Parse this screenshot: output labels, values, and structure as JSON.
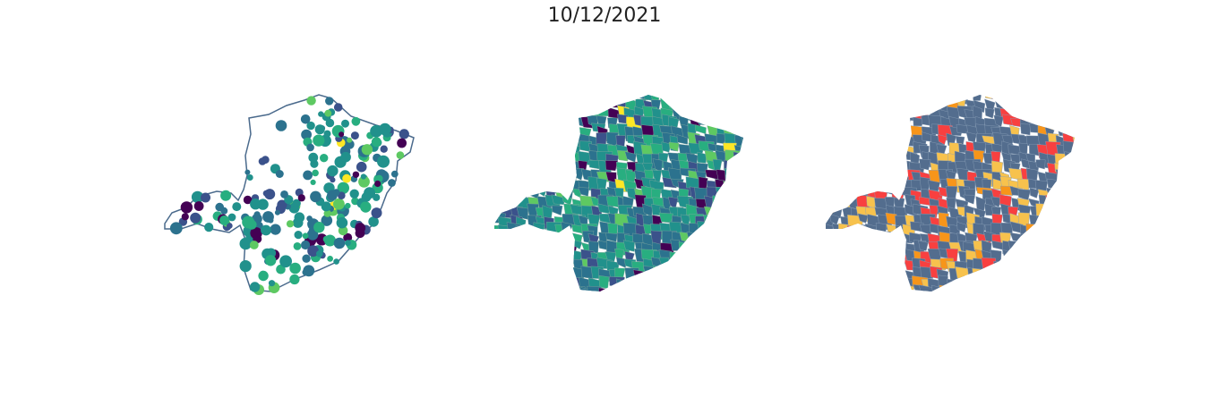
{
  "title": "10/12/2021",
  "colors": {
    "outline": "#4a6a8c",
    "viridis": [
      "#440154",
      "#3b528b",
      "#2c728e",
      "#21918c",
      "#28ae80",
      "#5ec962",
      "#9be042",
      "#fde725"
    ],
    "categorical": [
      "#536d8e",
      "#f7c24d",
      "#f7951a",
      "#f84040"
    ]
  },
  "panels": [
    {
      "type": "proportional-symbol-map"
    },
    {
      "type": "choropleth-continuous"
    },
    {
      "type": "choropleth-categorical"
    }
  ]
}
